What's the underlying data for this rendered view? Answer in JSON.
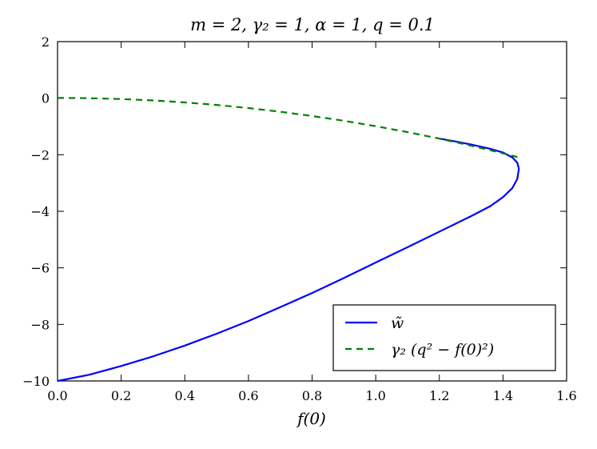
{
  "chart_data": {
    "type": "line",
    "title": "m = 2, γ₂ = 1, α = 1, q = 0.1",
    "xlabel": "f(0)",
    "ylabel": "",
    "xlim": [
      0.0,
      1.6
    ],
    "ylim": [
      -10,
      2
    ],
    "xticks": [
      "0.0",
      "0.2",
      "0.4",
      "0.6",
      "0.8",
      "1.0",
      "1.2",
      "1.4",
      "1.6"
    ],
    "yticks": [
      "2",
      "0",
      "−2",
      "−4",
      "−6",
      "−8",
      "−10"
    ],
    "xtick_values": [
      0.0,
      0.2,
      0.4,
      0.6,
      0.8,
      1.0,
      1.2,
      1.4,
      1.6
    ],
    "ytick_values": [
      2,
      0,
      -2,
      -4,
      -6,
      -8,
      -10
    ],
    "grid": false,
    "legend_position": "lower-right",
    "series": [
      {
        "name": "w̃",
        "color": "#0000ff",
        "style": "solid",
        "x": [
          0.0,
          0.1,
          0.2,
          0.3,
          0.4,
          0.5,
          0.6,
          0.7,
          0.8,
          0.9,
          1.0,
          1.1,
          1.2,
          1.3,
          1.36,
          1.4,
          1.43,
          1.445,
          1.45,
          1.445,
          1.43,
          1.4,
          1.36,
          1.3,
          1.25,
          1.2
        ],
        "y": [
          -10.0,
          -9.78,
          -9.47,
          -9.13,
          -8.75,
          -8.33,
          -7.88,
          -7.39,
          -6.89,
          -6.36,
          -5.81,
          -5.27,
          -4.72,
          -4.17,
          -3.82,
          -3.5,
          -3.17,
          -2.85,
          -2.5,
          -2.28,
          -2.1,
          -1.92,
          -1.79,
          -1.64,
          -1.53,
          -1.43
        ]
      },
      {
        "name": "γ₂ (q² − f(0)²)",
        "color": "#008000",
        "style": "dashed",
        "x": [
          0.0,
          0.1,
          0.2,
          0.3,
          0.4,
          0.5,
          0.6,
          0.7,
          0.8,
          0.9,
          1.0,
          1.1,
          1.2,
          1.3,
          1.4,
          1.445
        ],
        "y": [
          0.01,
          0.0,
          -0.03,
          -0.08,
          -0.15,
          -0.24,
          -0.35,
          -0.48,
          -0.63,
          -0.8,
          -0.99,
          -1.2,
          -1.43,
          -1.68,
          -1.95,
          -2.08
        ]
      }
    ]
  }
}
